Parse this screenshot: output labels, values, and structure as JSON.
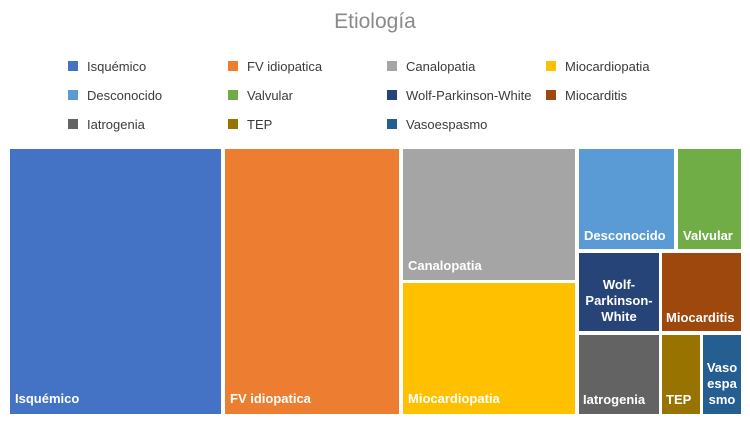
{
  "chart_data": {
    "type": "treemap",
    "title": "Etiología",
    "items": [
      {
        "name": "Isquémico",
        "value": 31,
        "color": "#4472C4",
        "label": "Isquémico"
      },
      {
        "name": "FV idiopatica",
        "value": 25,
        "color": "#ED7D31",
        "label": "FV idiopatica"
      },
      {
        "name": "Canalopatia",
        "value": 12,
        "color": "#A5A5A5",
        "label": "Canalopatia"
      },
      {
        "name": "Miocardiopatia",
        "value": 12,
        "color": "#FFC000",
        "label": "Miocardiopatia"
      },
      {
        "name": "Desconocido",
        "value": 4,
        "color": "#5B9BD5",
        "label": "Desconocido"
      },
      {
        "name": "Valvular",
        "value": 3,
        "color": "#70AD47",
        "label": "Valvular"
      },
      {
        "name": "Wolf-Parkinson-White",
        "value": 3,
        "color": "#264478",
        "label": "Wolf-\nParkinson-\nWhite"
      },
      {
        "name": "Miocarditis",
        "value": 3,
        "color": "#9E480E",
        "label": "Miocarditis"
      },
      {
        "name": "Iatrogenia",
        "value": 3,
        "color": "#636363",
        "label": "Iatrogenia"
      },
      {
        "name": "TEP",
        "value": 1.5,
        "color": "#997300",
        "label": "TEP"
      },
      {
        "name": "Vasoespasmo",
        "value": 1.5,
        "color": "#255E91",
        "label": "Vaso\nespa\nsmo"
      }
    ],
    "legend_position": "top"
  }
}
